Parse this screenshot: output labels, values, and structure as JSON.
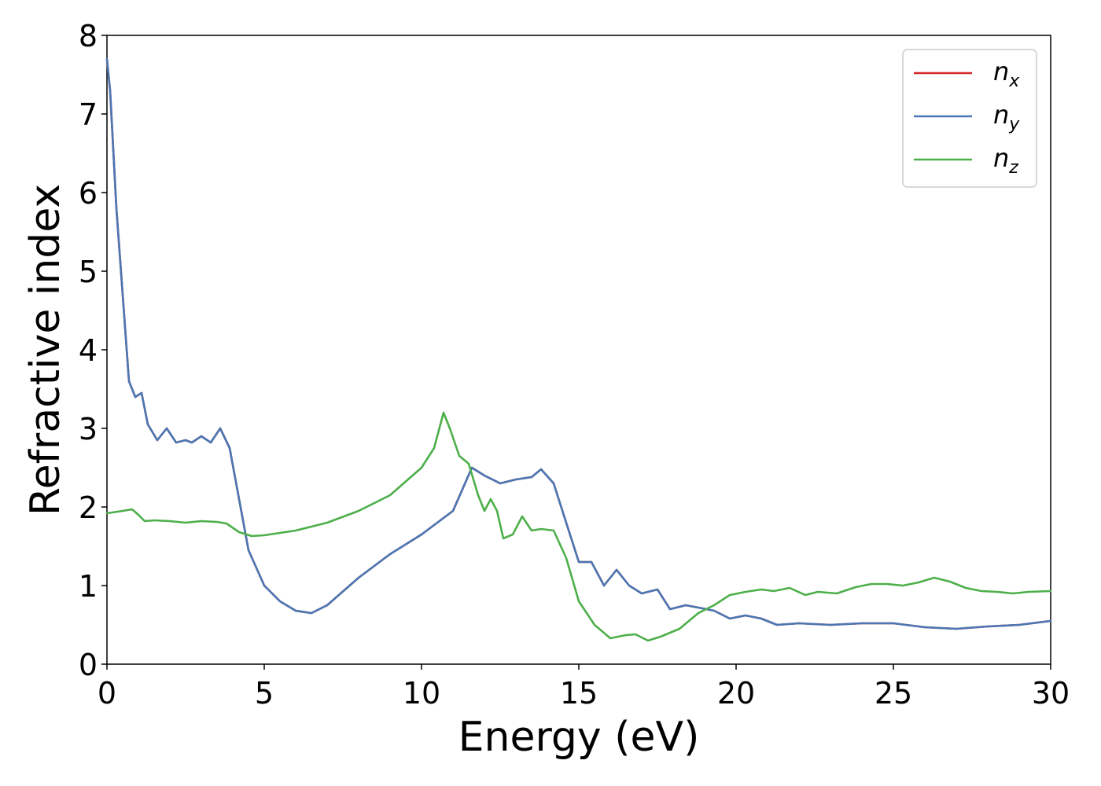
{
  "chart_data": {
    "type": "line",
    "title": "",
    "xlabel": "Energy (eV)",
    "ylabel": "Refractive index",
    "xlim": [
      0,
      30
    ],
    "ylim": [
      0,
      8
    ],
    "xticks": [
      "0",
      "5",
      "10",
      "15",
      "20",
      "25",
      "30"
    ],
    "yticks": [
      "0",
      "1",
      "2",
      "3",
      "4",
      "5",
      "6",
      "7",
      "8"
    ],
    "grid": false,
    "legend_position": "top-right",
    "series": [
      {
        "name": "n_x",
        "label_main": "n",
        "label_sub": "x",
        "color": "#d62728",
        "x": [
          0,
          0.1,
          0.3,
          0.5,
          0.7,
          0.9,
          1.1,
          1.3,
          1.6,
          1.9,
          2.2,
          2.5,
          2.7,
          3.0,
          3.3,
          3.6,
          3.9,
          4.2,
          4.5,
          5.0,
          5.5,
          6.0,
          6.5,
          7.0,
          8.0,
          9.0,
          10.0,
          11.0,
          11.6,
          12.0,
          12.5,
          13.0,
          13.5,
          13.8,
          14.2,
          14.6,
          15.0,
          15.4,
          15.8,
          16.2,
          16.6,
          17.0,
          17.5,
          17.9,
          18.4,
          18.8,
          19.3,
          19.8,
          20.3,
          20.8,
          21.3,
          22.0,
          23.0,
          24.0,
          25.0,
          26.0,
          27.0,
          28.0,
          29.0,
          30.0
        ],
        "y": [
          7.7,
          7.3,
          5.8,
          4.7,
          3.6,
          3.4,
          3.45,
          3.05,
          2.85,
          3.0,
          2.82,
          2.85,
          2.82,
          2.9,
          2.82,
          3.0,
          2.75,
          2.1,
          1.45,
          1.0,
          0.8,
          0.68,
          0.65,
          0.75,
          1.1,
          1.4,
          1.65,
          1.95,
          2.5,
          2.4,
          2.3,
          2.35,
          2.38,
          2.48,
          2.3,
          1.8,
          1.3,
          1.3,
          1.0,
          1.2,
          1.0,
          0.9,
          0.95,
          0.7,
          0.75,
          0.72,
          0.68,
          0.58,
          0.62,
          0.58,
          0.5,
          0.52,
          0.5,
          0.52,
          0.52,
          0.47,
          0.45,
          0.48,
          0.5,
          0.55
        ]
      },
      {
        "name": "n_y",
        "label_main": "n",
        "label_sub": "y",
        "color": "#4a77b4",
        "x": [
          0,
          0.1,
          0.3,
          0.5,
          0.7,
          0.9,
          1.1,
          1.3,
          1.6,
          1.9,
          2.2,
          2.5,
          2.7,
          3.0,
          3.3,
          3.6,
          3.9,
          4.2,
          4.5,
          5.0,
          5.5,
          6.0,
          6.5,
          7.0,
          8.0,
          9.0,
          10.0,
          11.0,
          11.6,
          12.0,
          12.5,
          13.0,
          13.5,
          13.8,
          14.2,
          14.6,
          15.0,
          15.4,
          15.8,
          16.2,
          16.6,
          17.0,
          17.5,
          17.9,
          18.4,
          18.8,
          19.3,
          19.8,
          20.3,
          20.8,
          21.3,
          22.0,
          23.0,
          24.0,
          25.0,
          26.0,
          27.0,
          28.0,
          29.0,
          30.0
        ],
        "y": [
          7.7,
          7.3,
          5.8,
          4.7,
          3.6,
          3.4,
          3.45,
          3.05,
          2.85,
          3.0,
          2.82,
          2.85,
          2.82,
          2.9,
          2.82,
          3.0,
          2.75,
          2.1,
          1.45,
          1.0,
          0.8,
          0.68,
          0.65,
          0.75,
          1.1,
          1.4,
          1.65,
          1.95,
          2.5,
          2.4,
          2.3,
          2.35,
          2.38,
          2.48,
          2.3,
          1.8,
          1.3,
          1.3,
          1.0,
          1.2,
          1.0,
          0.9,
          0.95,
          0.7,
          0.75,
          0.72,
          0.68,
          0.58,
          0.62,
          0.58,
          0.5,
          0.52,
          0.5,
          0.52,
          0.52,
          0.47,
          0.45,
          0.48,
          0.5,
          0.55
        ]
      },
      {
        "name": "n_z",
        "label_main": "n",
        "label_sub": "z",
        "color": "#4daf4a",
        "x": [
          0,
          0.5,
          0.8,
          1.0,
          1.2,
          1.5,
          2.0,
          2.5,
          3.0,
          3.5,
          3.8,
          4.2,
          4.6,
          5.0,
          6.0,
          7.0,
          8.0,
          9.0,
          10.0,
          10.4,
          10.7,
          10.9,
          11.2,
          11.5,
          11.8,
          12.0,
          12.2,
          12.4,
          12.6,
          12.9,
          13.2,
          13.5,
          13.8,
          14.2,
          14.6,
          15.0,
          15.5,
          16.0,
          16.5,
          16.8,
          17.2,
          17.6,
          18.2,
          18.8,
          19.3,
          19.8,
          20.3,
          20.8,
          21.2,
          21.7,
          22.2,
          22.6,
          23.2,
          23.8,
          24.3,
          24.8,
          25.3,
          25.8,
          26.3,
          26.8,
          27.3,
          27.8,
          28.3,
          28.8,
          29.3,
          30.0
        ],
        "y": [
          1.92,
          1.95,
          1.97,
          1.9,
          1.82,
          1.83,
          1.82,
          1.8,
          1.82,
          1.81,
          1.79,
          1.68,
          1.63,
          1.64,
          1.7,
          1.8,
          1.95,
          2.15,
          2.5,
          2.75,
          3.2,
          3.0,
          2.65,
          2.55,
          2.15,
          1.95,
          2.1,
          1.95,
          1.6,
          1.65,
          1.88,
          1.7,
          1.72,
          1.7,
          1.35,
          0.8,
          0.5,
          0.33,
          0.37,
          0.38,
          0.3,
          0.35,
          0.45,
          0.65,
          0.75,
          0.88,
          0.92,
          0.95,
          0.93,
          0.97,
          0.88,
          0.92,
          0.9,
          0.98,
          1.02,
          1.02,
          1.0,
          1.04,
          1.1,
          1.05,
          0.97,
          0.93,
          0.92,
          0.9,
          0.92,
          0.93
        ]
      }
    ]
  }
}
